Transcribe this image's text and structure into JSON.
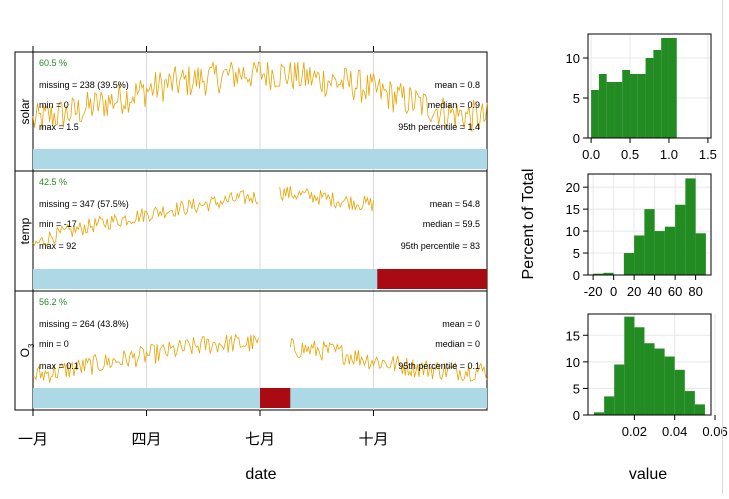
{
  "chart_data": [
    {
      "type": "line",
      "xlabel": "date",
      "x_ticks": [
        "一月",
        "四月",
        "七月",
        "十月"
      ],
      "x_tick_months": [
        0,
        3,
        6,
        9
      ],
      "x_range_months": [
        0,
        12
      ],
      "line_color": "#e8a300",
      "panels": [
        {
          "name": "solar",
          "ylim": [
            0,
            1.5
          ],
          "percent": "60.5 %",
          "missing": "missing = 238 (39.5%)",
          "min": "min = 0",
          "max": "max = 1.5",
          "mean": "mean = 0.8",
          "median": "median = 0.9",
          "p95": "95th percentile = 1.4",
          "gaps": [],
          "bar_color": "#add8e6",
          "missing_color": "#aa0a12",
          "series": {
            "x_months": [
              0.0,
              0.5,
              1.0,
              1.5,
              2.0,
              2.5,
              3.0,
              3.5,
              4.0,
              4.5,
              5.0,
              5.5,
              6.0,
              6.5,
              7.0,
              7.5,
              8.0,
              8.5,
              9.0,
              9.5,
              10.0,
              10.5,
              11.0,
              11.5,
              12.0
            ],
            "y": [
              0.45,
              0.55,
              0.6,
              0.7,
              0.8,
              0.9,
              1.0,
              1.1,
              1.15,
              1.2,
              1.25,
              1.3,
              1.3,
              1.3,
              1.25,
              1.2,
              1.15,
              1.1,
              1.0,
              0.9,
              0.8,
              0.7,
              0.6,
              0.55,
              0.5
            ],
            "amplitude": 0.3
          }
        },
        {
          "name": "temp",
          "ylim": [
            -17,
            92
          ],
          "percent": "42.5 %",
          "missing": "missing = 347 (57.5%)",
          "min": "min = -17",
          "max": "max = 92",
          "mean": "mean = 54.8",
          "median": "median = 59.5",
          "p95": "95th percentile = 83",
          "gaps": [
            [
              6.0,
              6.5
            ],
            [
              9.1,
              12.0
            ]
          ],
          "bar_color": "#add8e6",
          "missing_color": "#aa0a12",
          "missing_span": [
            9.1,
            12.0
          ],
          "series": {
            "x_months": [
              0.0,
              0.5,
              1.0,
              1.5,
              2.0,
              2.5,
              3.0,
              3.5,
              4.0,
              4.5,
              5.0,
              5.5,
              6.0,
              6.5,
              7.0,
              7.5,
              8.0,
              8.5,
              9.0
            ],
            "y": [
              10,
              22,
              28,
              35,
              40,
              45,
              50,
              55,
              58,
              62,
              66,
              70,
              72,
              78,
              75,
              72,
              68,
              65,
              62
            ],
            "amplitude": 10
          }
        },
        {
          "name": "O",
          "name_sub": "3",
          "ylim": [
            0,
            0.1
          ],
          "percent": "56.2 %",
          "missing": "missing = 264 (43.8%)",
          "min": "min = 0",
          "max": "max = 0.1",
          "mean": "mean = 0",
          "median": "median = 0",
          "p95": "95th percentile = 0.1",
          "gaps": [
            [
              6.0,
              6.8
            ]
          ],
          "bar_color": "#add8e6",
          "missing_color": "#aa0a12",
          "missing_span": [
            6.0,
            6.8
          ],
          "series": {
            "x_months": [
              0.0,
              0.5,
              1.0,
              1.5,
              2.0,
              2.5,
              3.0,
              3.5,
              4.0,
              4.5,
              5.0,
              5.5,
              6.0,
              6.8,
              7.0,
              7.5,
              8.0,
              8.5,
              9.0,
              9.5,
              10.0,
              10.5,
              11.0,
              11.5,
              12.0
            ],
            "y": [
              0.012,
              0.016,
              0.02,
              0.024,
              0.028,
              0.032,
              0.036,
              0.04,
              0.044,
              0.048,
              0.05,
              0.05,
              0.05,
              0.045,
              0.044,
              0.042,
              0.04,
              0.035,
              0.03,
              0.026,
              0.022,
              0.02,
              0.018,
              0.018,
              0.018
            ],
            "amplitude": 0.012
          }
        }
      ]
    },
    {
      "type": "histogram",
      "ylabel": "Percent of Total",
      "xlabel": "value",
      "bar_color": "#228b22",
      "panels": [
        {
          "name": "solar",
          "bin_start": 0.0,
          "bin_width": 0.1,
          "values": [
            6,
            8,
            7,
            7,
            8.5,
            8,
            8,
            10,
            11,
            12.5,
            12.5
          ],
          "ylim": [
            0,
            13
          ],
          "y_ticks": [
            "0",
            "5",
            "10"
          ],
          "y_tick_values": [
            0,
            5,
            10
          ],
          "x_ticks": [
            "0.0",
            "0.5",
            "1.0",
            "1.5"
          ],
          "x_tick_values": [
            0.0,
            0.5,
            1.0,
            1.5
          ],
          "xlim": [
            -0.04,
            1.54
          ]
        },
        {
          "name": "temp",
          "bin_start": -20,
          "bin_width": 10,
          "values": [
            0.3,
            0.5,
            0,
            5,
            9,
            15,
            10,
            11,
            16,
            22,
            9.5
          ],
          "ylim": [
            0,
            23
          ],
          "y_ticks": [
            "0",
            "5",
            "10",
            "15",
            "20"
          ],
          "y_tick_values": [
            0,
            5,
            10,
            15,
            20
          ],
          "x_ticks": [
            "-20",
            "0",
            "20",
            "40",
            "60",
            "80"
          ],
          "x_tick_values": [
            -20,
            0,
            20,
            40,
            60,
            80
          ],
          "xlim": [
            -25,
            95
          ]
        },
        {
          "name": "O3",
          "bin_start": 0.0,
          "bin_width": 0.005,
          "values": [
            0.5,
            3.5,
            9.5,
            18.5,
            16.5,
            13.5,
            12.5,
            11,
            8.5,
            4.5,
            2
          ],
          "ylim": [
            0,
            19
          ],
          "y_ticks": [
            "0",
            "5",
            "10",
            "15"
          ],
          "y_tick_values": [
            0,
            5,
            10,
            15
          ],
          "x_ticks": [
            "0.02",
            "0.04",
            "0.06"
          ],
          "x_tick_values": [
            0.02,
            0.04,
            0.06
          ],
          "xlim": [
            -0.003,
            0.058
          ]
        }
      ]
    }
  ]
}
